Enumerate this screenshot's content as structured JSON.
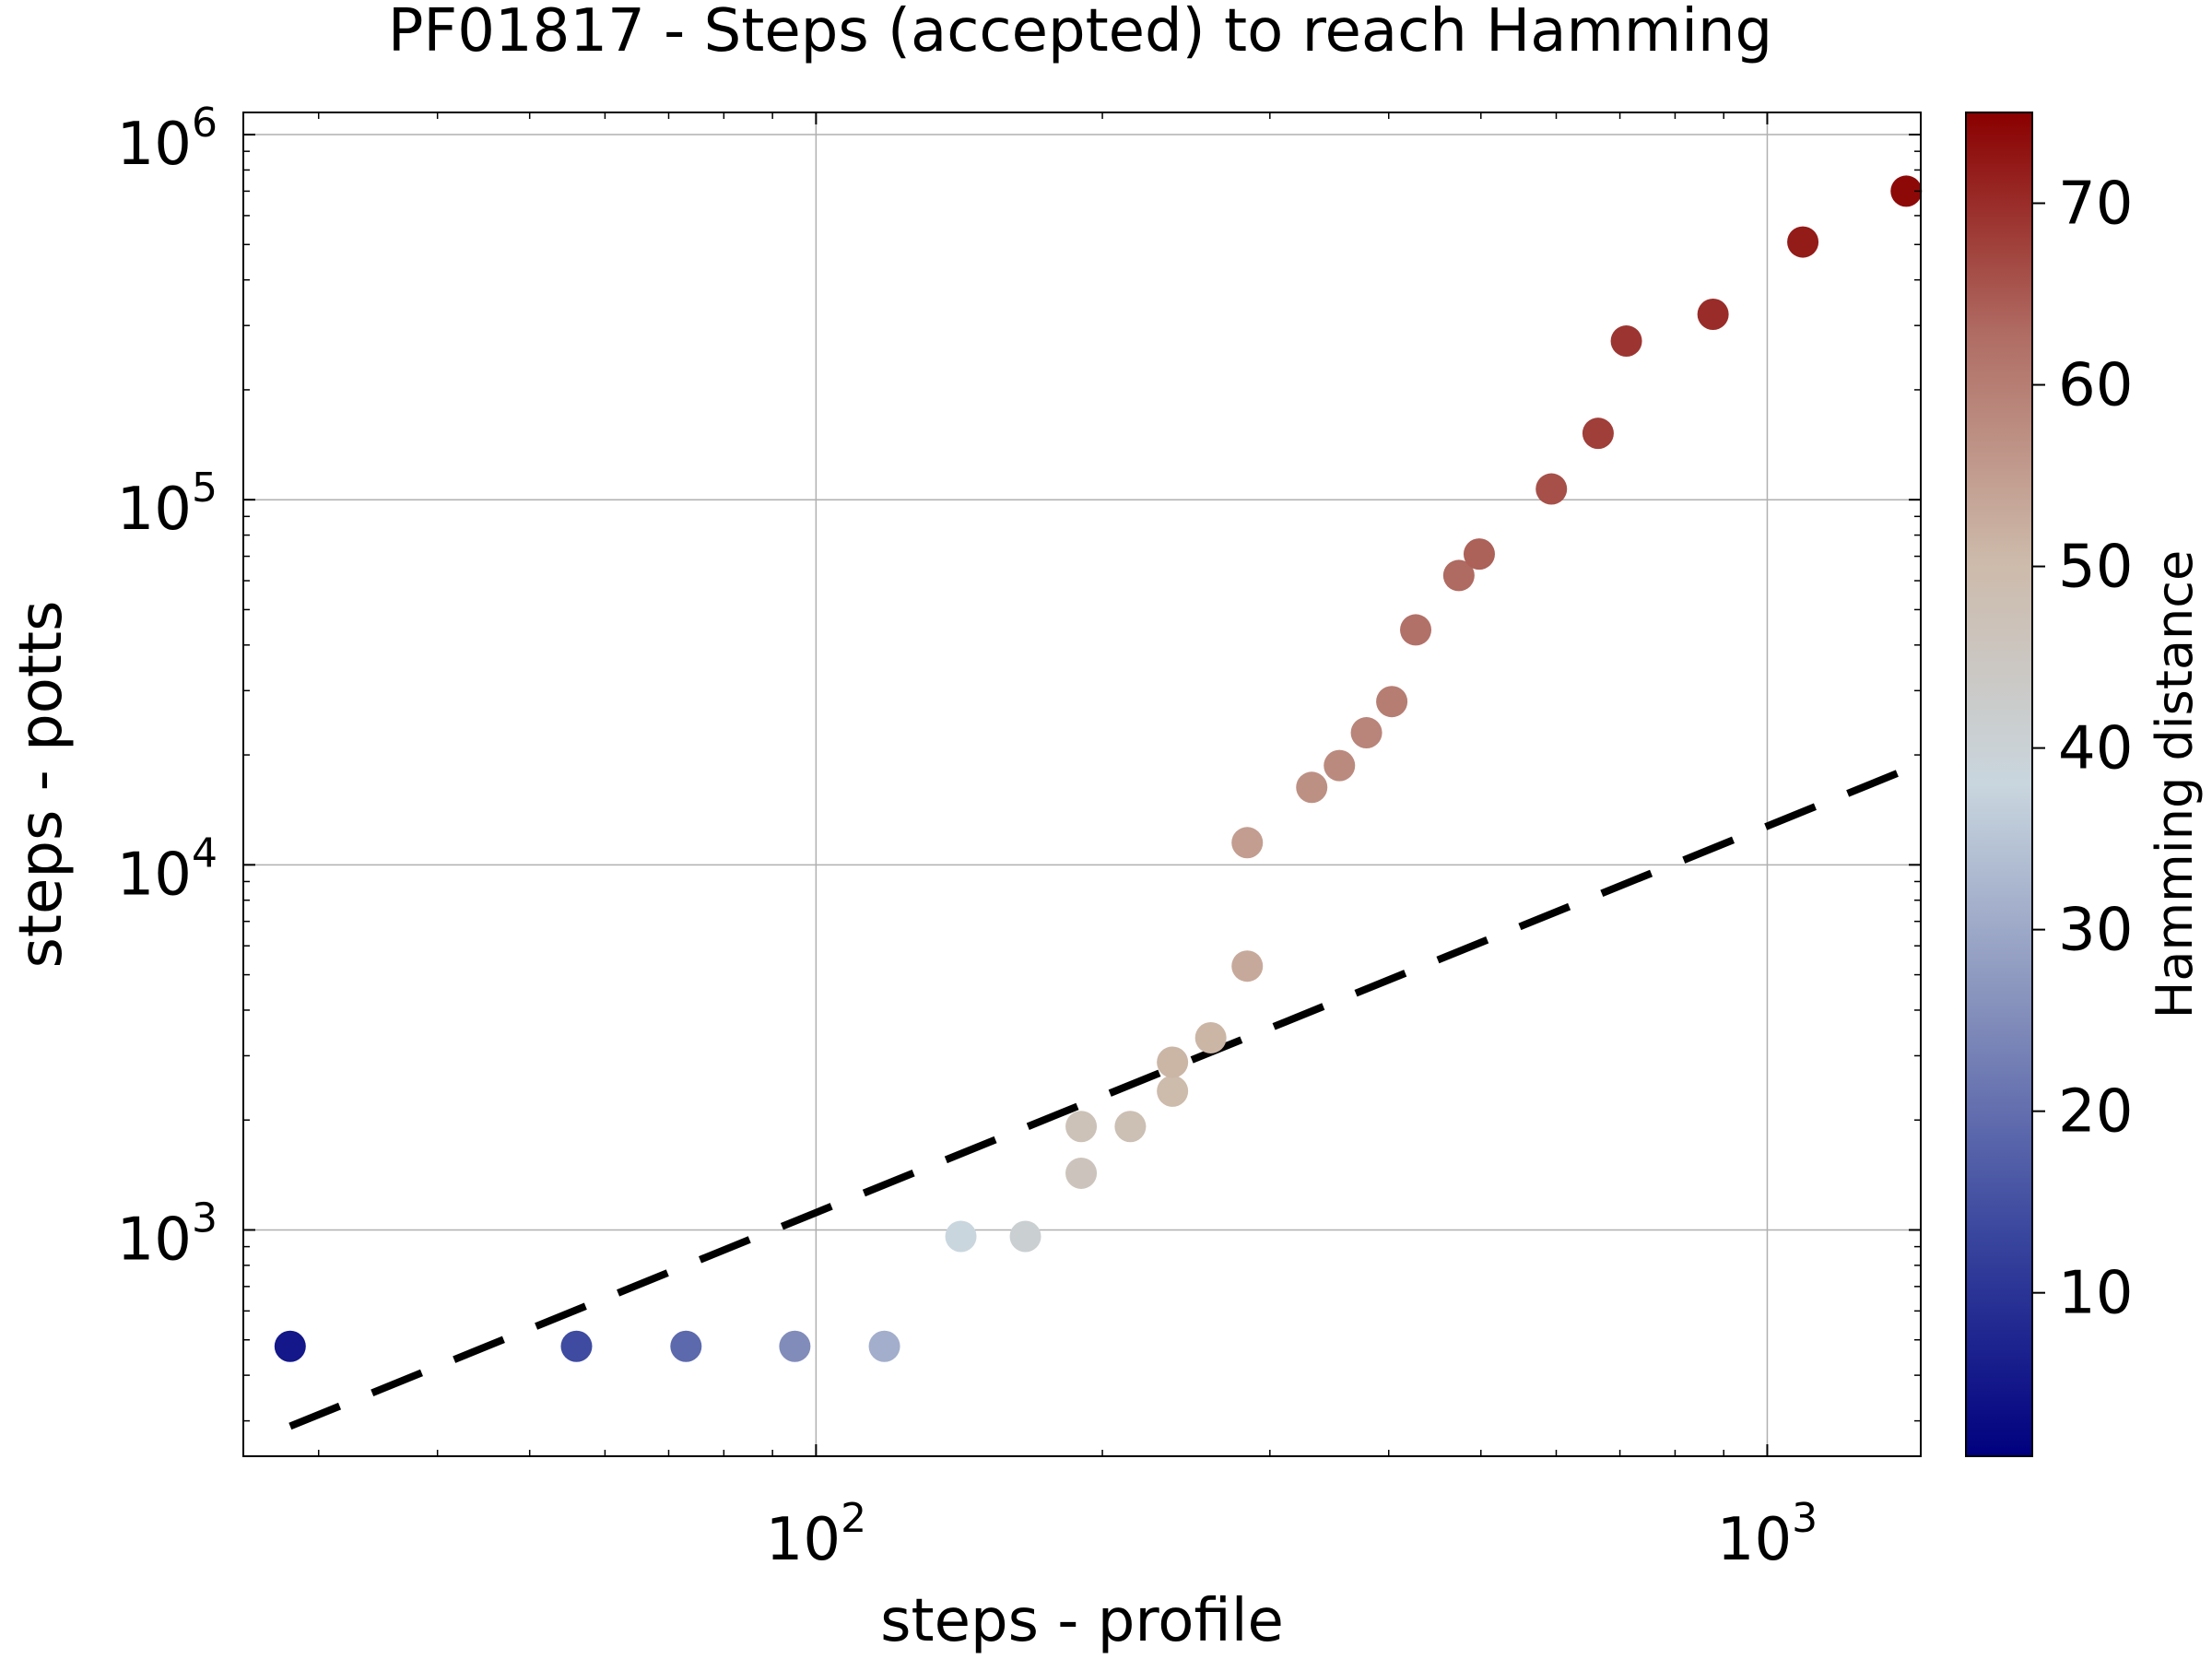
{
  "chart_data": {
    "type": "scatter",
    "title": "PF01817 - Steps (accepted) to reach Hamming",
    "xlabel": "steps - profile",
    "ylabel": "steps - potts",
    "colorbar_label": "Hamming distance",
    "x_scale": "log",
    "y_scale": "log",
    "xlim": [
      25,
      1450
    ],
    "ylim": [
      240,
      1150000
    ],
    "x_ticks": [
      {
        "value": 100,
        "base": "10",
        "exp": "2"
      },
      {
        "value": 1000,
        "base": "10",
        "exp": "3"
      }
    ],
    "y_ticks": [
      {
        "value": 1000,
        "base": "10",
        "exp": "3"
      },
      {
        "value": 10000,
        "base": "10",
        "exp": "4"
      },
      {
        "value": 100000,
        "base": "10",
        "exp": "5"
      },
      {
        "value": 1000000,
        "base": "10",
        "exp": "6"
      }
    ],
    "grid": true,
    "colorbar": {
      "min": 1,
      "max": 75,
      "ticks": [
        "10",
        "20",
        "30",
        "40",
        "50",
        "60",
        "70"
      ],
      "colormap": [
        "#00007f",
        "#3a479e",
        "#8590bc",
        "#c9d6de",
        "#cdbaaa",
        "#b06d64",
        "#8a0000"
      ]
    },
    "reference_line": {
      "style": "dashed",
      "color": "#000000",
      "x": [
        28,
        1420
      ],
      "y": [
        290,
        18500
      ]
    },
    "points": [
      {
        "x": 28,
        "y": 480,
        "hamming": 5
      },
      {
        "x": 56,
        "y": 480,
        "hamming": 14
      },
      {
        "x": 73,
        "y": 480,
        "hamming": 19
      },
      {
        "x": 95,
        "y": 480,
        "hamming": 25
      },
      {
        "x": 118,
        "y": 480,
        "hamming": 31
      },
      {
        "x": 142,
        "y": 960,
        "hamming": 38
      },
      {
        "x": 166,
        "y": 960,
        "hamming": 41
      },
      {
        "x": 190,
        "y": 1430,
        "hamming": 46
      },
      {
        "x": 190,
        "y": 1920,
        "hamming": 47
      },
      {
        "x": 214,
        "y": 1920,
        "hamming": 48
      },
      {
        "x": 237,
        "y": 2400,
        "hamming": 50
      },
      {
        "x": 237,
        "y": 2880,
        "hamming": 51
      },
      {
        "x": 260,
        "y": 3360,
        "hamming": 51
      },
      {
        "x": 284,
        "y": 5280,
        "hamming": 53
      },
      {
        "x": 284,
        "y": 11500,
        "hamming": 55
      },
      {
        "x": 332,
        "y": 16300,
        "hamming": 57
      },
      {
        "x": 355,
        "y": 18700,
        "hamming": 58
      },
      {
        "x": 379,
        "y": 23000,
        "hamming": 59
      },
      {
        "x": 403,
        "y": 28000,
        "hamming": 60
      },
      {
        "x": 427,
        "y": 44000,
        "hamming": 62
      },
      {
        "x": 474,
        "y": 62000,
        "hamming": 63
      },
      {
        "x": 498,
        "y": 71000,
        "hamming": 64
      },
      {
        "x": 593,
        "y": 107000,
        "hamming": 66
      },
      {
        "x": 664,
        "y": 152000,
        "hamming": 68
      },
      {
        "x": 711,
        "y": 272000,
        "hamming": 69
      },
      {
        "x": 877,
        "y": 322000,
        "hamming": 70
      },
      {
        "x": 1090,
        "y": 508000,
        "hamming": 72
      },
      {
        "x": 1400,
        "y": 700000,
        "hamming": 74
      }
    ]
  }
}
